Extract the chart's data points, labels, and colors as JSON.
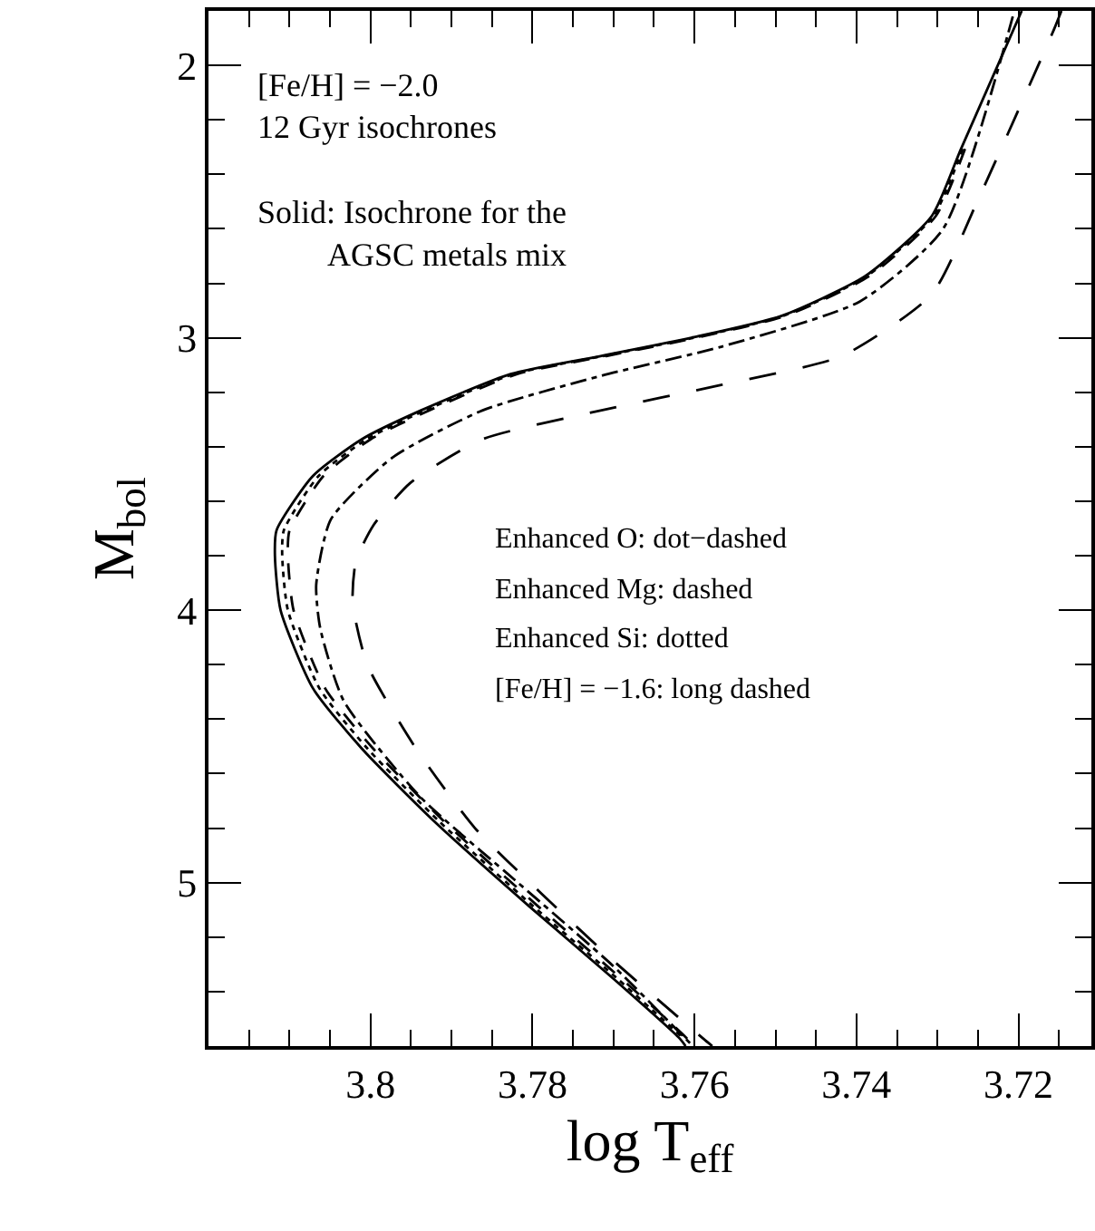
{
  "chart_data": {
    "type": "line",
    "xlabel": "log T$_{eff}$",
    "ylabel": "M$_{bol}$",
    "xlim": [
      3.82,
      3.711
    ],
    "ylim": [
      5.6,
      1.8
    ],
    "xticks": [
      {
        "value": 3.815,
        "label": null
      },
      {
        "value": 3.81,
        "label": null
      },
      {
        "value": 3.805,
        "label": null
      },
      3.8,
      {
        "value": 3.795,
        "label": null
      },
      {
        "value": 3.79,
        "label": null
      },
      {
        "value": 3.785,
        "label": null
      },
      3.78,
      {
        "value": 3.775,
        "label": null
      },
      {
        "value": 3.77,
        "label": null
      },
      {
        "value": 3.765,
        "label": null
      },
      3.76,
      {
        "value": 3.755,
        "label": null
      },
      {
        "value": 3.75,
        "label": null
      },
      {
        "value": 3.745,
        "label": null
      },
      3.74,
      {
        "value": 3.735,
        "label": null
      },
      {
        "value": 3.73,
        "label": null
      },
      {
        "value": 3.725,
        "label": null
      },
      3.72,
      {
        "value": 3.715,
        "label": null
      }
    ],
    "yticks": [
      {
        "value": 5.4,
        "label": null
      },
      {
        "value": 5.2,
        "label": null
      },
      5,
      {
        "value": 4.8,
        "label": null
      },
      {
        "value": 4.6,
        "label": null
      },
      {
        "value": 4.4,
        "label": null
      },
      {
        "value": 4.2,
        "label": null
      },
      4,
      {
        "value": 3.8,
        "label": null
      },
      {
        "value": 3.6,
        "label": null
      },
      {
        "value": 3.4,
        "label": null
      },
      {
        "value": 3.2,
        "label": null
      },
      3,
      {
        "value": 2.8,
        "label": null
      },
      {
        "value": 2.6,
        "label": null
      },
      {
        "value": 2.4,
        "label": null
      },
      {
        "value": 2.2,
        "label": null
      },
      2
    ],
    "marker": "none",
    "annotations": [
      "[Fe/H] = −2.0",
      "12 Gyr isochrones",
      "Solid: Isochrone for the\nAGSC metals mix",
      "Enhanced O: dot−dashed",
      "Enhanced Mg: dashed",
      "Enhanced Si: dotted",
      "[Fe/H] = −1.6: long dashed"
    ],
    "series": [
      {
        "color": "#000000",
        "line_style": "solid",
        "x": [
          3.7196,
          3.7271,
          3.7307,
          3.7389,
          3.7493,
          3.7604,
          3.7716,
          3.7827,
          3.7938,
          3.8011,
          3.8071,
          3.8116,
          3.8118,
          3.8111,
          3.8071,
          3.8011,
          3.7922,
          3.7804,
          3.77,
          3.7618,
          3.7611
        ],
        "values": [
          1.8,
          2.307,
          2.553,
          2.773,
          2.92,
          3.0,
          3.067,
          3.133,
          3.267,
          3.373,
          3.507,
          3.707,
          3.8,
          4.0,
          4.287,
          4.507,
          4.773,
          5.087,
          5.353,
          5.573,
          5.6
        ]
      },
      {
        "color": "#000000",
        "line_style": "dotted",
        "x": [
          3.7269,
          3.7305,
          3.7387,
          3.7491,
          3.7601,
          3.7713,
          3.7823,
          3.7933,
          3.8005,
          3.8064,
          3.8107,
          3.8109,
          3.8102,
          3.8063,
          3.8004,
          3.7916,
          3.7799,
          3.7695,
          3.7613
        ],
        "values": [
          2.307,
          2.553,
          2.773,
          2.92,
          3.0,
          3.067,
          3.133,
          3.267,
          3.373,
          3.507,
          3.707,
          3.8,
          4.0,
          4.287,
          4.507,
          4.773,
          5.087,
          5.353,
          5.573
        ]
      },
      {
        "color": "#000000",
        "line_style": "dashed",
        "x": [
          3.7266,
          3.7302,
          3.7384,
          3.7488,
          3.7598,
          3.7709,
          3.7819,
          3.7928,
          3.8,
          3.8058,
          3.81,
          3.8102,
          3.8095,
          3.8056,
          3.7997,
          3.791,
          3.7793,
          3.769,
          3.7609,
          3.7603
        ],
        "values": [
          2.307,
          2.553,
          2.773,
          2.92,
          3.0,
          3.067,
          3.133,
          3.267,
          3.373,
          3.507,
          3.707,
          3.8,
          4.0,
          4.287,
          4.507,
          4.773,
          5.087,
          5.353,
          5.573,
          5.6
        ]
      },
      {
        "color": "#000000",
        "line_style": "dashdot",
        "x": [
          3.7207,
          3.7293,
          3.7396,
          3.7567,
          3.7716,
          3.7862,
          3.7973,
          3.8049,
          3.8067,
          3.8062,
          3.8033,
          3.7938,
          3.7818,
          3.77,
          3.7611,
          3.7602
        ],
        "values": [
          1.82,
          2.6,
          2.867,
          3.033,
          3.14,
          3.267,
          3.44,
          3.667,
          3.907,
          4.067,
          4.333,
          4.687,
          5.0,
          5.307,
          5.573,
          5.6
        ]
      },
      {
        "color": "#000000",
        "line_style": "longdash",
        "x": [
          3.7147,
          3.7156,
          3.7249,
          3.7307,
          3.7418,
          3.7567,
          3.7716,
          3.7862,
          3.7951,
          3.7996,
          3.8018,
          3.8022,
          3.8004,
          3.7944,
          3.7871,
          3.7789,
          3.77,
          3.7589,
          3.7578
        ],
        "values": [
          1.8,
          1.867,
          2.487,
          2.84,
          3.067,
          3.173,
          3.267,
          3.373,
          3.533,
          3.687,
          3.82,
          3.973,
          4.2,
          4.507,
          4.8,
          5.04,
          5.287,
          5.573,
          5.6
        ]
      }
    ]
  }
}
